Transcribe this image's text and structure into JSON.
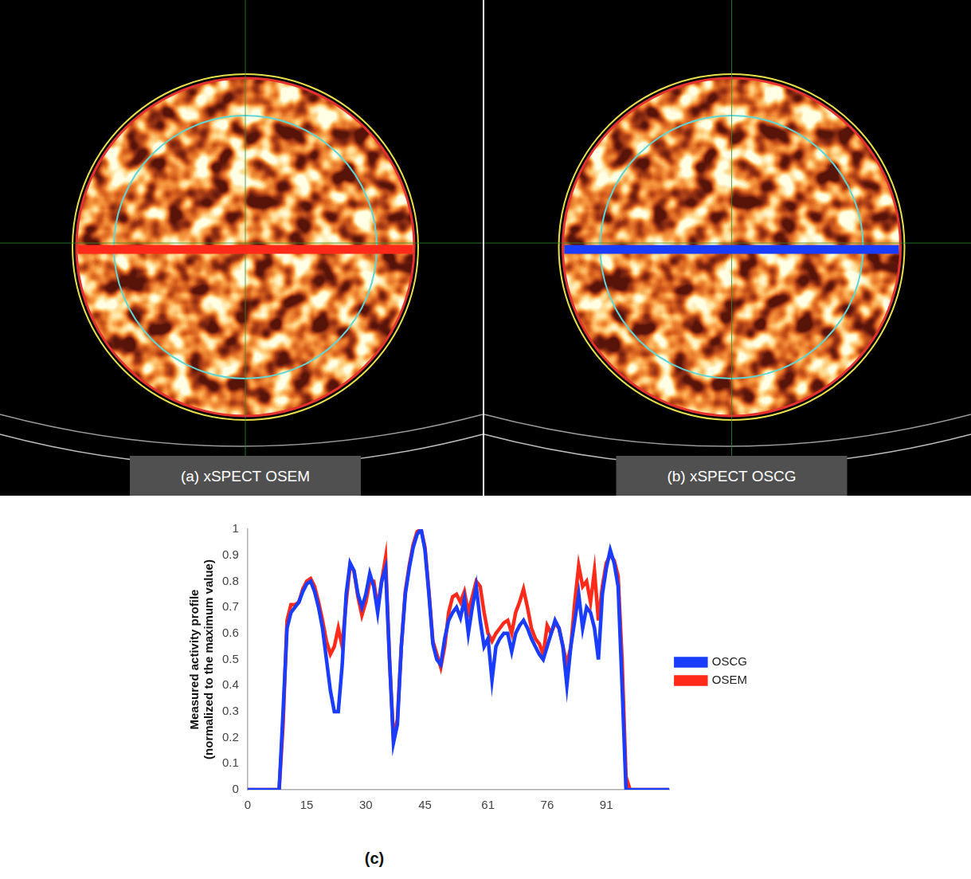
{
  "images": [
    {
      "label": "(a) xSPECT OSEM"
    },
    {
      "label": "(b) xSPECT OSCG"
    }
  ],
  "figure_label": "(c)",
  "chart_data": {
    "type": "line",
    "ylabel": [
      "Measured activity profile",
      "(normalized to the maximum value)"
    ],
    "x": [
      0,
      1,
      2,
      3,
      4,
      5,
      6,
      7,
      8,
      9,
      10,
      11,
      12,
      13,
      14,
      15,
      16,
      17,
      18,
      19,
      20,
      21,
      22,
      23,
      24,
      25,
      26,
      27,
      28,
      29,
      30,
      31,
      32,
      33,
      34,
      35,
      36,
      37,
      38,
      39,
      40,
      41,
      42,
      43,
      44,
      45,
      46,
      47,
      48,
      49,
      50,
      51,
      52,
      53,
      54,
      55,
      56,
      57,
      58,
      59,
      60,
      61,
      62,
      63,
      64,
      65,
      66,
      67,
      68,
      69,
      70,
      71,
      72,
      73,
      74,
      75,
      76,
      77,
      78,
      79,
      80,
      81,
      82,
      83,
      84,
      85,
      86,
      87,
      88,
      89,
      90,
      91,
      92,
      93,
      94,
      95,
      96,
      97,
      98,
      99,
      100,
      101,
      102,
      103,
      104,
      105,
      106,
      107
    ],
    "series": [
      {
        "name": "OSEM",
        "color": "#ff2a1a",
        "values": [
          0,
          0,
          0,
          0,
          0,
          0,
          0,
          0,
          0,
          0.25,
          0.65,
          0.71,
          0.71,
          0.72,
          0.77,
          0.8,
          0.81,
          0.78,
          0.72,
          0.65,
          0.57,
          0.52,
          0.55,
          0.62,
          0.55,
          0.72,
          0.86,
          0.84,
          0.74,
          0.67,
          0.72,
          0.8,
          0.8,
          0.7,
          0.8,
          0.89,
          0.5,
          0.2,
          0.27,
          0.55,
          0.76,
          0.86,
          0.94,
          0.99,
          1.0,
          0.93,
          0.76,
          0.57,
          0.52,
          0.47,
          0.55,
          0.68,
          0.74,
          0.75,
          0.72,
          0.76,
          0.68,
          0.74,
          0.8,
          0.78,
          0.68,
          0.6,
          0.57,
          0.6,
          0.62,
          0.64,
          0.65,
          0.6,
          0.68,
          0.72,
          0.77,
          0.7,
          0.62,
          0.58,
          0.56,
          0.52,
          0.63,
          0.6,
          0.64,
          0.62,
          0.55,
          0.48,
          0.55,
          0.72,
          0.86,
          0.78,
          0.8,
          0.72,
          0.84,
          0.65,
          0.78,
          0.87,
          0.9,
          0.88,
          0.82,
          0.5,
          0.05,
          0,
          0,
          0,
          0,
          0,
          0,
          0,
          0,
          0,
          0,
          0
        ]
      },
      {
        "name": "OSCG",
        "color": "#1a3cff",
        "values": [
          0,
          0,
          0,
          0,
          0,
          0,
          0,
          0,
          0,
          0.3,
          0.62,
          0.68,
          0.7,
          0.72,
          0.76,
          0.79,
          0.8,
          0.76,
          0.7,
          0.62,
          0.5,
          0.38,
          0.3,
          0.3,
          0.48,
          0.75,
          0.87,
          0.84,
          0.75,
          0.7,
          0.75,
          0.83,
          0.78,
          0.68,
          0.8,
          0.85,
          0.5,
          0.18,
          0.25,
          0.55,
          0.75,
          0.85,
          0.93,
          0.98,
          1.0,
          0.92,
          0.75,
          0.56,
          0.5,
          0.48,
          0.58,
          0.65,
          0.68,
          0.7,
          0.66,
          0.73,
          0.6,
          0.7,
          0.78,
          0.65,
          0.55,
          0.58,
          0.42,
          0.55,
          0.58,
          0.6,
          0.6,
          0.53,
          0.6,
          0.63,
          0.65,
          0.62,
          0.58,
          0.55,
          0.52,
          0.5,
          0.55,
          0.6,
          0.65,
          0.62,
          0.55,
          0.4,
          0.55,
          0.65,
          0.75,
          0.62,
          0.7,
          0.68,
          0.62,
          0.5,
          0.75,
          0.85,
          0.92,
          0.87,
          0.78,
          0.4,
          0,
          0,
          0,
          0,
          0,
          0,
          0,
          0,
          0,
          0,
          0,
          0
        ]
      }
    ],
    "xlim": [
      0,
      107
    ],
    "xticks": [
      0,
      15,
      30,
      45,
      61,
      76,
      91
    ],
    "ylim": [
      0,
      1
    ],
    "yticks": [
      0,
      0.1,
      0.2,
      0.3,
      0.4,
      0.5,
      0.6,
      0.7,
      0.8,
      0.9,
      1
    ],
    "grid": false,
    "legend": "right"
  }
}
